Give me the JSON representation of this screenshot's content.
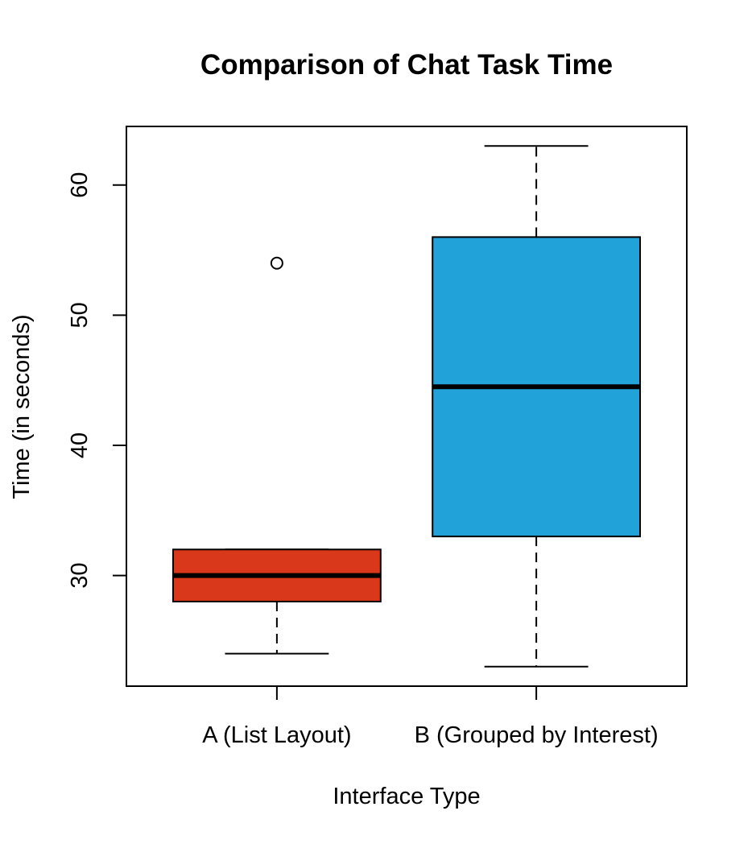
{
  "chart_data": {
    "type": "boxplot",
    "title": "Comparison of Chat Task Time",
    "xlabel": "Interface Type",
    "ylabel": "Time (in seconds)",
    "ylim": [
      21.5,
      64.5
    ],
    "yticks": [
      30,
      40,
      50,
      60
    ],
    "categories": [
      "A (List Layout)",
      "B (Grouped by Interest)"
    ],
    "boxes": [
      {
        "category": "A (List Layout)",
        "color": "#d9391a",
        "whisker_low": 24,
        "q1": 28,
        "median": 30,
        "q3": 32,
        "whisker_high": 32,
        "outliers": [
          54
        ]
      },
      {
        "category": "B (Grouped by Interest)",
        "color": "#21a3da",
        "whisker_low": 23,
        "q1": 33,
        "median": 44.5,
        "q3": 56,
        "whisker_high": 63,
        "outliers": []
      }
    ],
    "grid": false,
    "legend": "none"
  }
}
